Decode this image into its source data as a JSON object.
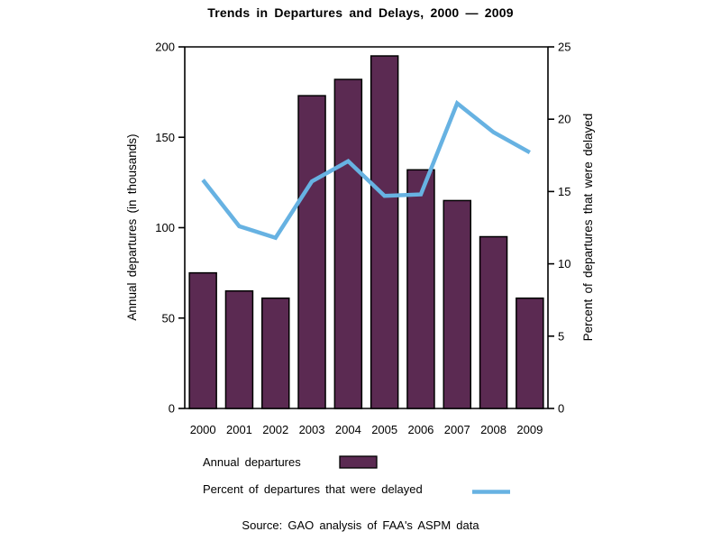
{
  "colors": {
    "bar": "#5B2A52",
    "line": "#67B2E2",
    "axis": "#000000",
    "background": "#FFFFFF"
  },
  "chart_data": {
    "type": "combo: bar + line (dual y-axes)",
    "title": "Trends in Departures and Delays, 2000 — 2009",
    "categories": [
      "2000",
      "2001",
      "2002",
      "2003",
      "2004",
      "2005",
      "2006",
      "2007",
      "2008",
      "2009"
    ],
    "series": [
      {
        "name": "Annual departures",
        "type": "bar",
        "axis": "left",
        "color": "#5B2A52",
        "values": [
          75,
          65,
          61,
          173,
          182,
          195,
          132,
          115,
          95,
          61
        ]
      },
      {
        "name": "Percent of departures that were delayed",
        "type": "line",
        "axis": "right",
        "color": "#67B2E2",
        "values": [
          15.8,
          12.6,
          11.8,
          15.7,
          17.1,
          14.7,
          14.8,
          21.1,
          19.1,
          17.7
        ]
      }
    ],
    "left_axis": {
      "label": "Annual departures (in thousands)",
      "min": 0,
      "max": 200,
      "ticks": [
        0,
        50,
        100,
        150,
        200
      ]
    },
    "right_axis": {
      "label": "Percent of departures that were delayed",
      "min": 0,
      "max": 25,
      "ticks": [
        0,
        5,
        10,
        15,
        20,
        25
      ]
    },
    "x_axis": {
      "label": ""
    },
    "grid": false,
    "legend_position": "bottom-left",
    "source": "Source: GAO analysis of FAA's ASPM data"
  }
}
